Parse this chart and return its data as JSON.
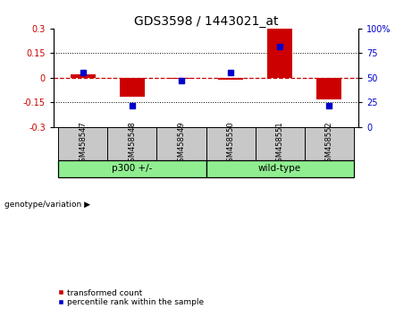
{
  "title": "GDS3598 / 1443021_at",
  "samples": [
    "GSM458547",
    "GSM458548",
    "GSM458549",
    "GSM458550",
    "GSM458551",
    "GSM458552"
  ],
  "red_values": [
    0.022,
    -0.115,
    -0.008,
    -0.01,
    0.298,
    -0.13
  ],
  "blue_values": [
    55,
    22,
    47,
    55,
    82,
    22
  ],
  "ylim_left": [
    -0.3,
    0.3
  ],
  "ylim_right": [
    0,
    100
  ],
  "yticks_left": [
    -0.3,
    -0.15,
    0.0,
    0.15,
    0.3
  ],
  "yticks_right": [
    0,
    25,
    50,
    75,
    100
  ],
  "bar_color": "#CC0000",
  "marker_color": "#0000CC",
  "dashed_line_color": "#CC0000",
  "bg_label": "#C8C8C8",
  "bg_group": "#90EE90",
  "legend_red": "transformed count",
  "legend_blue": "percentile rank within the sample",
  "genotype_label": "genotype/variation",
  "title_fontsize": 10,
  "tick_fontsize": 7,
  "bar_width": 0.5,
  "marker_size": 5,
  "group1_label": "p300 +/-",
  "group2_label": "wild-type"
}
